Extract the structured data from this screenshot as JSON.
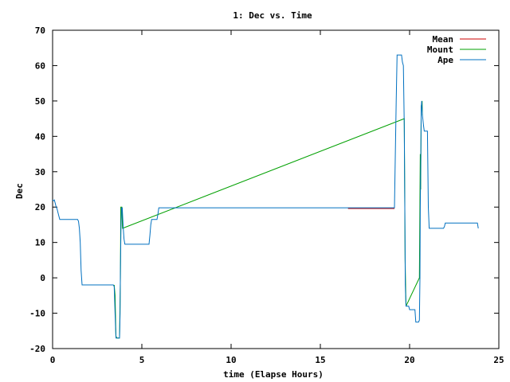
{
  "chart_data": {
    "type": "line",
    "title": "1: Dec vs. Time",
    "xlabel": "time (Elapse Hours)",
    "ylabel": "Dec",
    "xlim": [
      0,
      25
    ],
    "ylim": [
      -20,
      70
    ],
    "xticks": [
      "0",
      "5",
      "10",
      "15",
      "20",
      "25"
    ],
    "yticks": [
      "-20",
      "-10",
      "0",
      "10",
      "20",
      "30",
      "40",
      "50",
      "60",
      "70"
    ],
    "grid": false,
    "legend_position": "top-right",
    "series": [
      {
        "name": "Mean",
        "color": "#cc0000",
        "points": [
          [
            16.55,
            19.6
          ],
          [
            19.15,
            19.6
          ]
        ]
      },
      {
        "name": "Mount",
        "color": "#00a000",
        "points": [
          [
            3.45,
            -2
          ],
          [
            3.5,
            -5
          ],
          [
            3.55,
            -16.5
          ],
          [
            3.6,
            -17
          ],
          [
            3.75,
            -17
          ],
          [
            3.8,
            0
          ],
          [
            3.82,
            20
          ],
          [
            3.88,
            20
          ],
          [
            3.92,
            14
          ],
          [
            19.7,
            45
          ],
          [
            19.75,
            5
          ],
          [
            19.8,
            -8
          ],
          [
            20.55,
            0
          ],
          [
            20.6,
            35
          ],
          [
            20.62,
            25
          ],
          [
            20.65,
            48.5
          ],
          [
            20.7,
            50
          ],
          [
            20.72,
            46
          ]
        ]
      },
      {
        "name": "Ape",
        "color": "#0070c0",
        "points": [
          [
            0,
            22
          ],
          [
            0.05,
            21.8
          ],
          [
            0.1,
            22
          ],
          [
            0.15,
            21
          ],
          [
            0.2,
            20
          ],
          [
            0.25,
            19.5
          ],
          [
            0.3,
            18.5
          ],
          [
            0.35,
            17.5
          ],
          [
            0.4,
            16.5
          ],
          [
            1.4,
            16.5
          ],
          [
            1.45,
            16
          ],
          [
            1.5,
            14
          ],
          [
            1.55,
            10
          ],
          [
            1.6,
            2
          ],
          [
            1.65,
            -2
          ],
          [
            3.4,
            -2
          ],
          [
            3.45,
            -2.5
          ],
          [
            3.5,
            -10
          ],
          [
            3.55,
            -17
          ],
          [
            3.75,
            -17
          ],
          [
            3.78,
            -10
          ],
          [
            3.8,
            2
          ],
          [
            3.83,
            14
          ],
          [
            3.86,
            19.8
          ],
          [
            3.9,
            19.8
          ],
          [
            3.93,
            17
          ],
          [
            3.96,
            14
          ],
          [
            4.0,
            11
          ],
          [
            4.05,
            9.5
          ],
          [
            5.4,
            9.5
          ],
          [
            5.45,
            12
          ],
          [
            5.5,
            15
          ],
          [
            5.55,
            16.5
          ],
          [
            5.85,
            16.5
          ],
          [
            5.9,
            18
          ],
          [
            5.95,
            19.8
          ],
          [
            19.15,
            19.8
          ],
          [
            19.2,
            35
          ],
          [
            19.25,
            50
          ],
          [
            19.3,
            63
          ],
          [
            19.55,
            63
          ],
          [
            19.6,
            61
          ],
          [
            19.65,
            60
          ],
          [
            19.7,
            43
          ],
          [
            19.73,
            20
          ],
          [
            19.76,
            -2
          ],
          [
            19.8,
            -8
          ],
          [
            19.95,
            -8
          ],
          [
            20.0,
            -9
          ],
          [
            20.3,
            -9
          ],
          [
            20.35,
            -12.5
          ],
          [
            20.5,
            -12.5
          ],
          [
            20.55,
            -12
          ],
          [
            20.58,
            0
          ],
          [
            20.6,
            20
          ],
          [
            20.62,
            30
          ],
          [
            20.65,
            48
          ],
          [
            20.68,
            50
          ],
          [
            20.72,
            46
          ],
          [
            20.78,
            43
          ],
          [
            20.82,
            41.5
          ],
          [
            21.0,
            41.5
          ],
          [
            21.05,
            20
          ],
          [
            21.1,
            14
          ],
          [
            21.9,
            14
          ],
          [
            21.95,
            14.5
          ],
          [
            22.0,
            15.5
          ],
          [
            23.8,
            15.5
          ],
          [
            23.85,
            14
          ]
        ]
      }
    ]
  }
}
